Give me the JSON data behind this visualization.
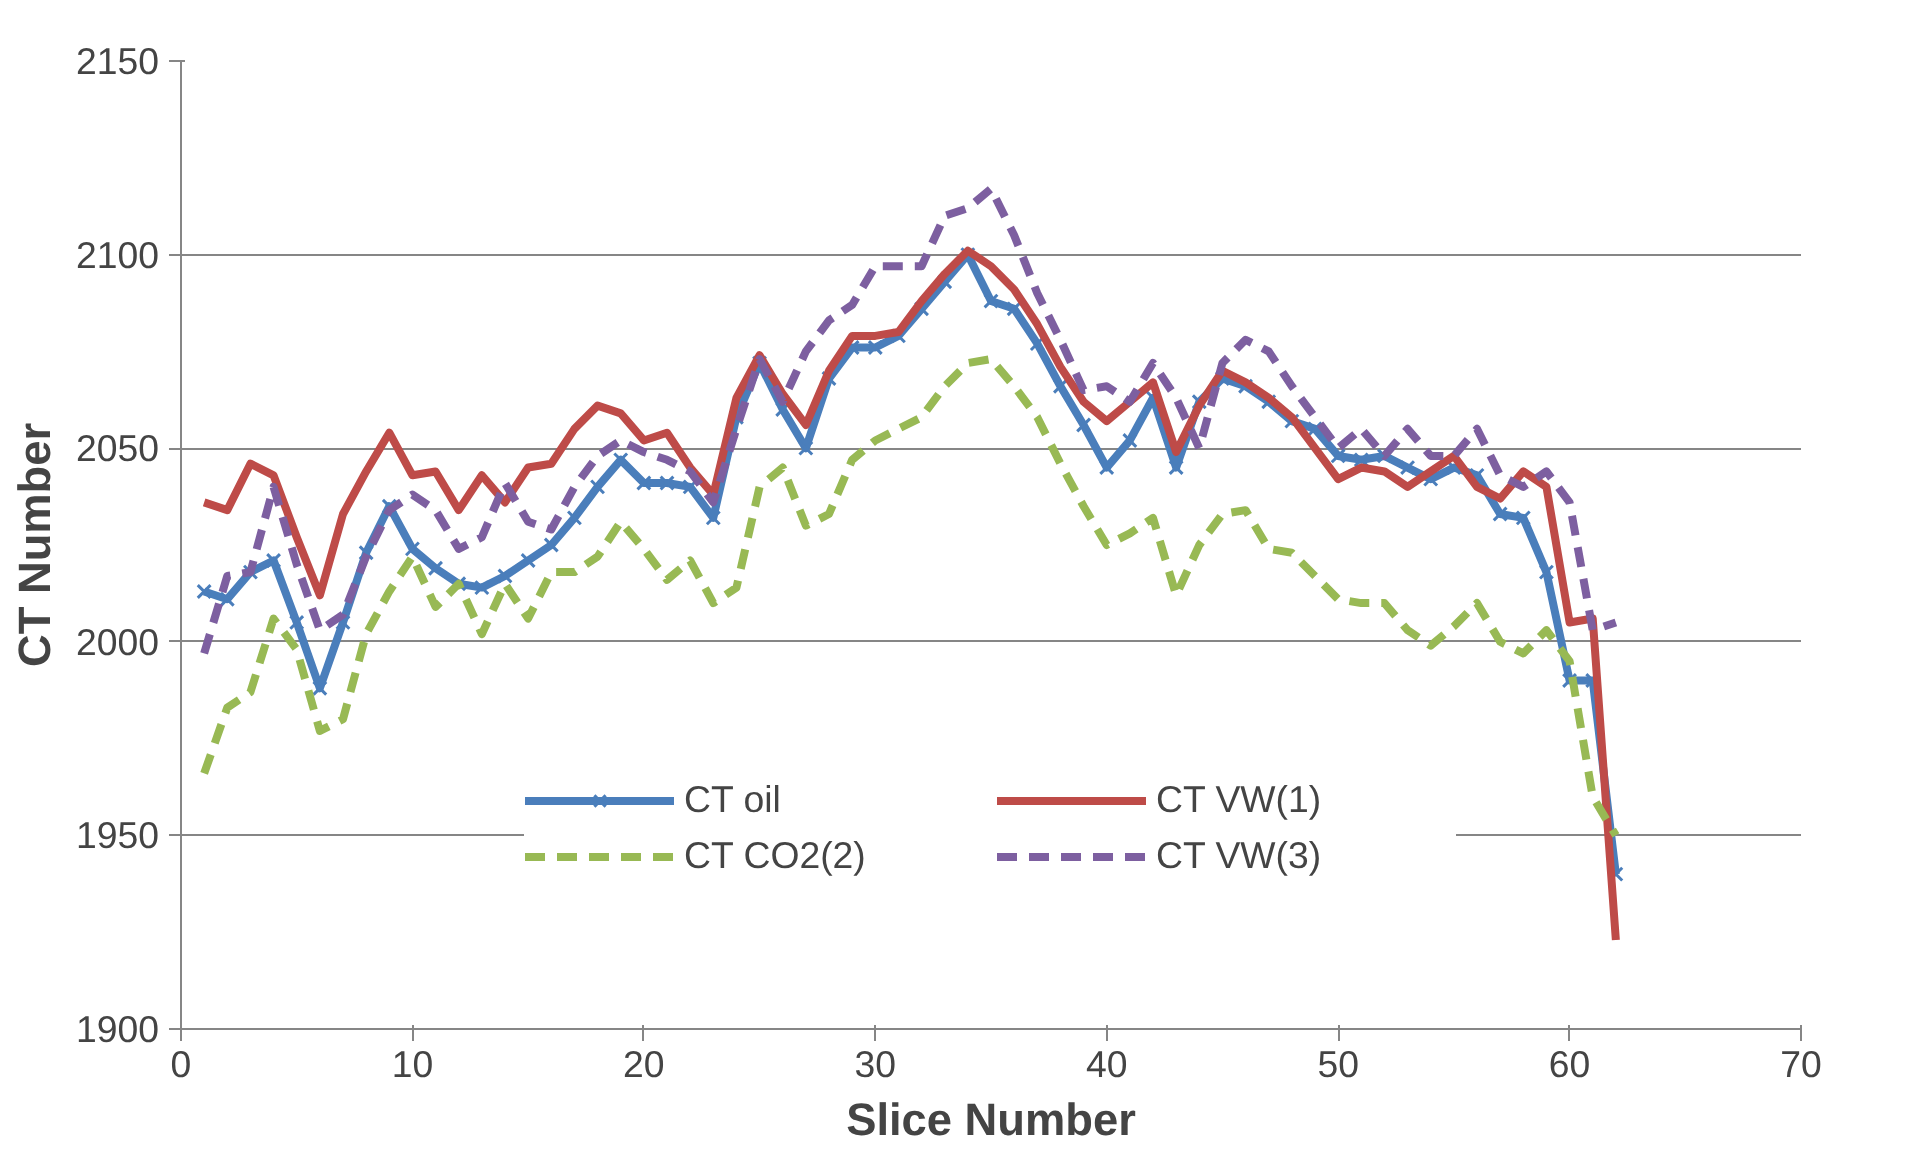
{
  "chart_data": {
    "type": "line",
    "xlabel": "Slice Number",
    "ylabel": "CT Number",
    "x": [
      1,
      2,
      3,
      4,
      5,
      6,
      7,
      8,
      9,
      10,
      11,
      12,
      13,
      14,
      15,
      16,
      17,
      18,
      19,
      20,
      21,
      22,
      23,
      24,
      25,
      26,
      27,
      28,
      29,
      30,
      31,
      32,
      33,
      34,
      35,
      36,
      37,
      38,
      39,
      40,
      41,
      42,
      43,
      44,
      45,
      46,
      47,
      48,
      49,
      50,
      51,
      52,
      53,
      54,
      55,
      56,
      57,
      58,
      59,
      60,
      61,
      62
    ],
    "xlim": [
      0,
      70
    ],
    "xticks": [
      0,
      10,
      20,
      30,
      40,
      50,
      60,
      70
    ],
    "ylim": [
      1900,
      2150
    ],
    "yticks": [
      1900,
      1950,
      2000,
      2050,
      2100,
      2150
    ],
    "grid": "y",
    "legend": "bottom",
    "series": [
      {
        "name": "CT oil",
        "color": "#4a7ebb",
        "marker": "cross",
        "line_style": "solid",
        "values": [
          2013,
          2011,
          2018,
          2021,
          2005,
          1988,
          2005,
          2023,
          2035,
          2024,
          2019,
          2015,
          2014,
          2017,
          2021,
          2025,
          2032,
          2040,
          2047,
          2041,
          2041,
          2040,
          2032,
          2058,
          2072,
          2060,
          2050,
          2068,
          2076,
          2076,
          2079,
          2086,
          2093,
          2100,
          2088,
          2086,
          2077,
          2066,
          2056,
          2045,
          2052,
          2063,
          2045,
          2062,
          2068,
          2066,
          2062,
          2057,
          2055,
          2048,
          2047,
          2048,
          2045,
          2042,
          2045,
          2043,
          2033,
          2032,
          2018,
          1990,
          1990,
          1940
        ]
      },
      {
        "name": "CT VW(1)",
        "color": "#be4b48",
        "marker": "none",
        "line_style": "solid",
        "values": [
          2036,
          2034,
          2046,
          2043,
          2027,
          2012,
          2033,
          2044,
          2054,
          2043,
          2044,
          2034,
          2043,
          2036,
          2045,
          2046,
          2055,
          2061,
          2059,
          2052,
          2054,
          2045,
          2038,
          2063,
          2074,
          2064,
          2056,
          2070,
          2079,
          2079,
          2080,
          2088,
          2095,
          2101,
          2097,
          2091,
          2082,
          2071,
          2062,
          2057,
          2062,
          2067,
          2049,
          2061,
          2070,
          2067,
          2063,
          2058,
          2050,
          2042,
          2045,
          2044,
          2040,
          2044,
          2048,
          2040,
          2037,
          2044,
          2040,
          2005,
          2006,
          1923
        ]
      },
      {
        "name": "CT CO2(2)",
        "color": "#98b954",
        "marker": "none",
        "line_style": "dashed",
        "values": [
          1966,
          1983,
          1987,
          2006,
          1998,
          1977,
          1980,
          2002,
          2013,
          2022,
          2009,
          2015,
          2002,
          2015,
          2006,
          2018,
          2018,
          2022,
          2031,
          2024,
          2016,
          2021,
          2010,
          2014,
          2040,
          2045,
          2030,
          2033,
          2047,
          2052,
          2055,
          2058,
          2066,
          2072,
          2073,
          2066,
          2058,
          2046,
          2035,
          2025,
          2028,
          2032,
          2012,
          2025,
          2033,
          2034,
          2024,
          2023,
          2017,
          2011,
          2010,
          2010,
          2003,
          1999,
          2004,
          2010,
          2000,
          1997,
          2003,
          1995,
          1960,
          1950
        ]
      },
      {
        "name": "CT VW(3)",
        "color": "#7d5fa0",
        "marker": "none",
        "line_style": "dashed",
        "values": [
          1997,
          2017,
          2018,
          2040,
          2020,
          2003,
          2007,
          2022,
          2034,
          2038,
          2034,
          2024,
          2027,
          2041,
          2031,
          2029,
          2040,
          2048,
          2052,
          2049,
          2047,
          2044,
          2036,
          2055,
          2073,
          2062,
          2075,
          2083,
          2087,
          2097,
          2097,
          2097,
          2110,
          2112,
          2117,
          2105,
          2090,
          2078,
          2065,
          2066,
          2062,
          2072,
          2063,
          2050,
          2072,
          2078,
          2075,
          2066,
          2058,
          2050,
          2055,
          2048,
          2055,
          2048,
          2048,
          2055,
          2043,
          2040,
          2044,
          2036,
          2003,
          2005
        ]
      }
    ]
  }
}
